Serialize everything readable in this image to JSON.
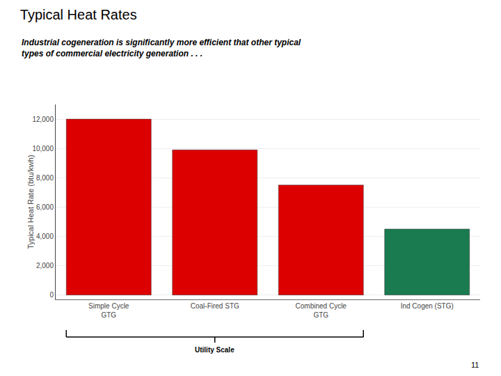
{
  "chart_data": {
    "type": "bar",
    "title": "Typical Heat Rates",
    "subtitle": "Industrial cogeneration is significantly more efficient that other typical\ntypes of commercial electricity generation . . .",
    "categories": [
      "Simple Cycle\nGTG",
      "Coal-Fired STG",
      "Combined Cycle\nGTG",
      "Ind Cogen (STG)"
    ],
    "values": [
      12000,
      9900,
      7500,
      4500
    ],
    "colors": [
      "#dd0000",
      "#dd0000",
      "#dd0000",
      "#1a7a50"
    ],
    "ylabel": "Typical Heat Rate (btu/kwh)",
    "ylim": [
      -300,
      13000
    ],
    "yticks": [
      0,
      {
        "value": 2000,
        "label": "2,000"
      },
      {
        "value": 4000,
        "label": "4,000"
      },
      {
        "value": 6000,
        "label": "6,000"
      },
      {
        "value": 8000,
        "label": "8,000"
      },
      {
        "value": 10000,
        "label": "10,000"
      },
      {
        "value": 12000,
        "label": "12,000"
      }
    ],
    "grid": true,
    "annotations": [
      "Utility Scale",
      "11"
    ]
  }
}
